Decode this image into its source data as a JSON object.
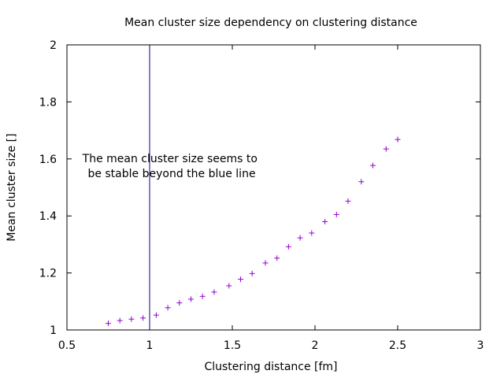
{
  "chart_data": {
    "type": "scatter",
    "title": "Mean cluster size dependency on clustering distance",
    "xlabel": "Clustering distance [fm]",
    "ylabel": "Mean cluster size []",
    "xlim": [
      0.5,
      3
    ],
    "ylim": [
      1,
      2
    ],
    "x_ticks": [
      "0.5",
      "1",
      "1.5",
      "2",
      "2.5",
      "3"
    ],
    "y_ticks": [
      "1",
      "1.2",
      "1.4",
      "1.6",
      "1.8",
      "2"
    ],
    "grid": false,
    "marker": "+",
    "colors": {
      "points": "#9400d3",
      "vertical_line": "#000080",
      "axes": "#000000"
    },
    "vertical_line_x": 1.0,
    "annotation": [
      "The mean cluster size seems to",
      "be stable beyond the blue line"
    ],
    "series": [
      {
        "x": [
          0.75,
          0.82,
          0.89,
          0.96,
          1.04,
          1.11,
          1.18,
          1.25,
          1.32,
          1.39,
          1.48,
          1.55,
          1.62,
          1.7,
          1.77,
          1.84,
          1.91,
          1.98,
          2.06,
          2.13,
          2.2,
          2.28,
          2.35,
          2.43,
          2.5
        ],
        "y": [
          1.023,
          1.033,
          1.038,
          1.042,
          1.052,
          1.078,
          1.095,
          1.108,
          1.118,
          1.133,
          1.155,
          1.178,
          1.198,
          1.235,
          1.252,
          1.292,
          1.323,
          1.34,
          1.38,
          1.405,
          1.452,
          1.52,
          1.577,
          1.635,
          1.668
        ]
      }
    ]
  }
}
